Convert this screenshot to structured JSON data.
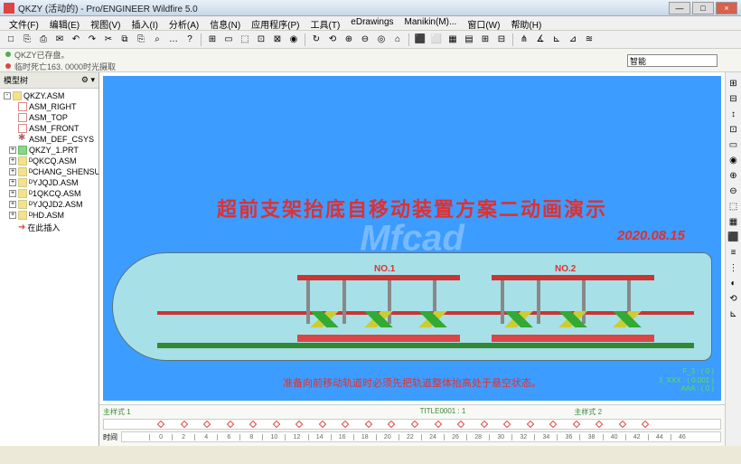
{
  "window": {
    "title": "QKZY (活动的) - Pro/ENGINEER Wildfire 5.0",
    "min": "—",
    "max": "□",
    "close": "×"
  },
  "menus": [
    "文件(F)",
    "编辑(E)",
    "视图(V)",
    "插入(I)",
    "分析(A)",
    "信息(N)",
    "应用程序(P)",
    "工具(T)",
    "eDrawings",
    "Manikin(M)...",
    "窗口(W)",
    "帮助(H)"
  ],
  "toolbar1": [
    "□",
    "⎘",
    "⎙",
    "✉",
    "↶",
    "↷",
    "✂",
    "⧉",
    "⎘",
    "⌕",
    "…",
    "?",
    "",
    "⊞",
    "▭",
    "⬚",
    "⊡",
    "⊠",
    "◉",
    "",
    "↻",
    "⟲",
    "⊕",
    "⊖",
    "◎",
    "⌂",
    "",
    "⬛",
    "⬜",
    "▦",
    "▤",
    "⊞",
    "⊟",
    "",
    "⋔",
    "∡",
    "⊾",
    "⊿",
    "≋"
  ],
  "info": {
    "line1": "QKZY已存盘。",
    "line2": "临时死亡163. 0000时光摄取"
  },
  "sidebar": {
    "header": "模型树",
    "items": [
      {
        "exp": "-",
        "icon": "asm",
        "label": "QKZY.ASM",
        "lvl": 0
      },
      {
        "icon": "plane",
        "label": "ASM_RIGHT",
        "lvl": 1
      },
      {
        "icon": "plane",
        "label": "ASM_TOP",
        "lvl": 1
      },
      {
        "icon": "plane",
        "label": "ASM_FRONT",
        "lvl": 1
      },
      {
        "icon": "csys",
        "label": "ASM_DEF_CSYS",
        "lvl": 1
      },
      {
        "exp": "+",
        "icon": "prt",
        "label": "QKZY_1.PRT",
        "lvl": 1
      },
      {
        "exp": "+",
        "icon": "asm",
        "label": "ᴰQKCQ.ASM",
        "lvl": 1
      },
      {
        "exp": "+",
        "icon": "asm",
        "label": "ᴰCHANG_SHENSU",
        "lvl": 1
      },
      {
        "exp": "+",
        "icon": "asm",
        "label": "ᴰYJQJD.ASM",
        "lvl": 1
      },
      {
        "exp": "+",
        "icon": "asm",
        "label": "ᴰ1QKCQ.ASM",
        "lvl": 1
      },
      {
        "exp": "+",
        "icon": "asm",
        "label": "ᴰYJQJD2.ASM",
        "lvl": 1
      },
      {
        "exp": "+",
        "icon": "asm",
        "label": "ᴰHD.ASM",
        "lvl": 1
      },
      {
        "icon": "arrow",
        "label": "在此插入",
        "lvl": 1
      }
    ]
  },
  "viewport": {
    "title": "超前支架抬底自移动装置方案二动画演示",
    "date": "2020.08.15",
    "labels": {
      "n1": "NO.1",
      "n2": "NO.2"
    },
    "subtitle": "准备向前移动轨道时必须先把轨道整体抬高处于悬空状态。",
    "coords": "F_3 : ( 0 )\n3_XXX : ( 0.001 )\nAAA : ( 0 )",
    "watermark": "Mfcad",
    "bg_color": "#3d9cff",
    "tube_color": "#a8e0e8",
    "text_color": "#e03030"
  },
  "smart": "智能",
  "right_tools": [
    "⊞",
    "⊟",
    "↕",
    "⊡",
    "▭",
    "◉",
    "⊕",
    "⊖",
    "⬚",
    "▦",
    "⬛",
    "≡",
    "⋮",
    "◐",
    "⟲",
    "⊾"
  ],
  "timeline": {
    "label1": "主样式 1",
    "label2": "TITLE0001 : 1",
    "label3": "主样式 2",
    "ruler_label": "时间",
    "ticks": [
      "0",
      "2",
      "4",
      "6",
      "8",
      "10",
      "12",
      "14",
      "16",
      "18",
      "20",
      "22",
      "24",
      "26",
      "28",
      "30",
      "32",
      "34",
      "36",
      "38",
      "40",
      "42",
      "44",
      "46"
    ],
    "mark_count": 22
  }
}
